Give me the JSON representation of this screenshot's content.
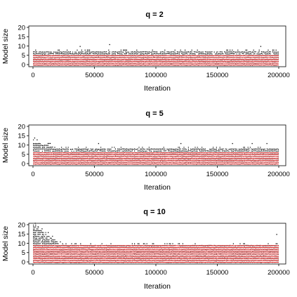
{
  "chart_data": [
    {
      "type": "scatter",
      "title": "q = 2",
      "xlabel": "Iteration",
      "ylabel": "Model size",
      "xlim": [
        0,
        200000
      ],
      "ylim": [
        0,
        20
      ],
      "xticks": [
        "0",
        "50000",
        "100000",
        "150000",
        "200000"
      ],
      "yticks": [
        "0",
        "5",
        "10",
        "15",
        "20"
      ],
      "band_max": 7,
      "band_max_early": 7,
      "red_line_values": [
        0,
        1,
        2,
        3,
        4,
        5
      ],
      "outliers": [
        [
          38000,
          10
        ],
        [
          62000,
          11
        ],
        [
          185000,
          10
        ]
      ]
    },
    {
      "type": "scatter",
      "title": "q = 5",
      "xlabel": "Iteration",
      "ylabel": "Model size",
      "xlim": [
        0,
        200000
      ],
      "ylim": [
        0,
        20
      ],
      "xticks": [
        "0",
        "50000",
        "100000",
        "150000",
        "200000"
      ],
      "yticks": [
        "0",
        "5",
        "10",
        "15",
        "20"
      ],
      "band_max": 8,
      "band_max_early": 12,
      "red_line_values": [
        0,
        1,
        2,
        3,
        4,
        5,
        6
      ],
      "outliers": [
        [
          1000,
          14
        ],
        [
          3000,
          13
        ],
        [
          53000,
          11
        ],
        [
          120000,
          11
        ],
        [
          162000,
          11
        ],
        [
          178000,
          11
        ],
        [
          190000,
          11
        ]
      ]
    },
    {
      "type": "scatter",
      "title": "q = 10",
      "xlabel": "Iteration",
      "ylabel": "Model size",
      "xlim": [
        0,
        200000
      ],
      "ylim": [
        0,
        20
      ],
      "xticks": [
        "0",
        "50000",
        "100000",
        "150000",
        "200000"
      ],
      "yticks": [
        "0",
        "5",
        "10",
        "15",
        "20"
      ],
      "band_max": 9,
      "band_max_early": 20,
      "red_line_values": [
        0,
        1,
        2,
        3,
        4,
        5,
        6,
        7,
        8,
        9
      ],
      "outliers": [
        [
          1500,
          21
        ],
        [
          4000,
          19
        ],
        [
          7000,
          18
        ],
        [
          12000,
          16
        ],
        [
          198000,
          15
        ]
      ]
    }
  ]
}
